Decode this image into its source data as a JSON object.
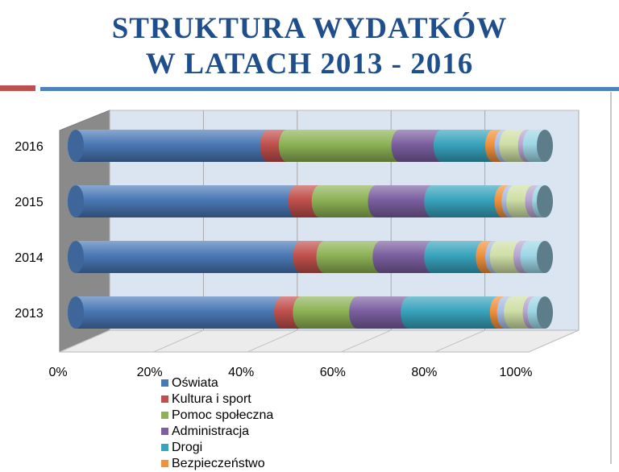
{
  "title": {
    "line1": "STRUKTURA WYDATKÓW",
    "line2": "W LATACH 2013 - 2016"
  },
  "colors": {
    "title": "#1f4e8c",
    "accent_red": "#c0504d",
    "accent_blue": "#4f81bd"
  },
  "chart_data": {
    "type": "bar",
    "orientation": "horizontal",
    "stacked": "percent",
    "style": "3d-cylinder",
    "categories": [
      "2013",
      "2014",
      "2015",
      "2016"
    ],
    "x_tick_labels": [
      "0%",
      "20%",
      "40%",
      "60%",
      "80%",
      "100%"
    ],
    "xlim": [
      0,
      100
    ],
    "grid": true,
    "legend_position": "bottom",
    "series": [
      {
        "name": "Oświata",
        "color": "#4a78b5",
        "values": [
          44,
          48,
          47,
          41
        ]
      },
      {
        "name": "Kultura i sport",
        "color": "#c0504d",
        "values": [
          4,
          5,
          5,
          4
        ]
      },
      {
        "name": "Pomoc społeczna",
        "color": "#8db255",
        "values": [
          12,
          12,
          12,
          24
        ]
      },
      {
        "name": "Administracja",
        "color": "#7b5fa0",
        "values": [
          11,
          11,
          12,
          9
        ]
      },
      {
        "name": "Drogi",
        "color": "#38a3bd",
        "values": [
          19,
          11,
          15,
          11
        ]
      },
      {
        "name": "Bezpieczeństwo",
        "color": "#f0913c",
        "values": [
          1.5,
          2,
          1.5,
          2
        ]
      },
      {
        "name": null,
        "color": "#a9bde3",
        "values": [
          1.5,
          1,
          1,
          1
        ]
      },
      {
        "name": null,
        "color": "#cfdfa6",
        "values": [
          4,
          5,
          4,
          4
        ]
      },
      {
        "name": null,
        "color": "#b9a5d1",
        "values": [
          1,
          1.5,
          1.5,
          1
        ]
      },
      {
        "name": null,
        "color": "#9ed7e6",
        "values": [
          2,
          3.5,
          1,
          3
        ]
      }
    ]
  },
  "legend": [
    {
      "label": "Oświata",
      "color": "#4a78b5"
    },
    {
      "label": "Kultura i sport",
      "color": "#c0504d"
    },
    {
      "label": "Pomoc społeczna",
      "color": "#8db255"
    },
    {
      "label": "Administracja",
      "color": "#7b5fa0"
    },
    {
      "label": "Drogi",
      "color": "#38a3bd"
    },
    {
      "label": "Bezpieczeństwo",
      "color": "#f0913c"
    }
  ]
}
